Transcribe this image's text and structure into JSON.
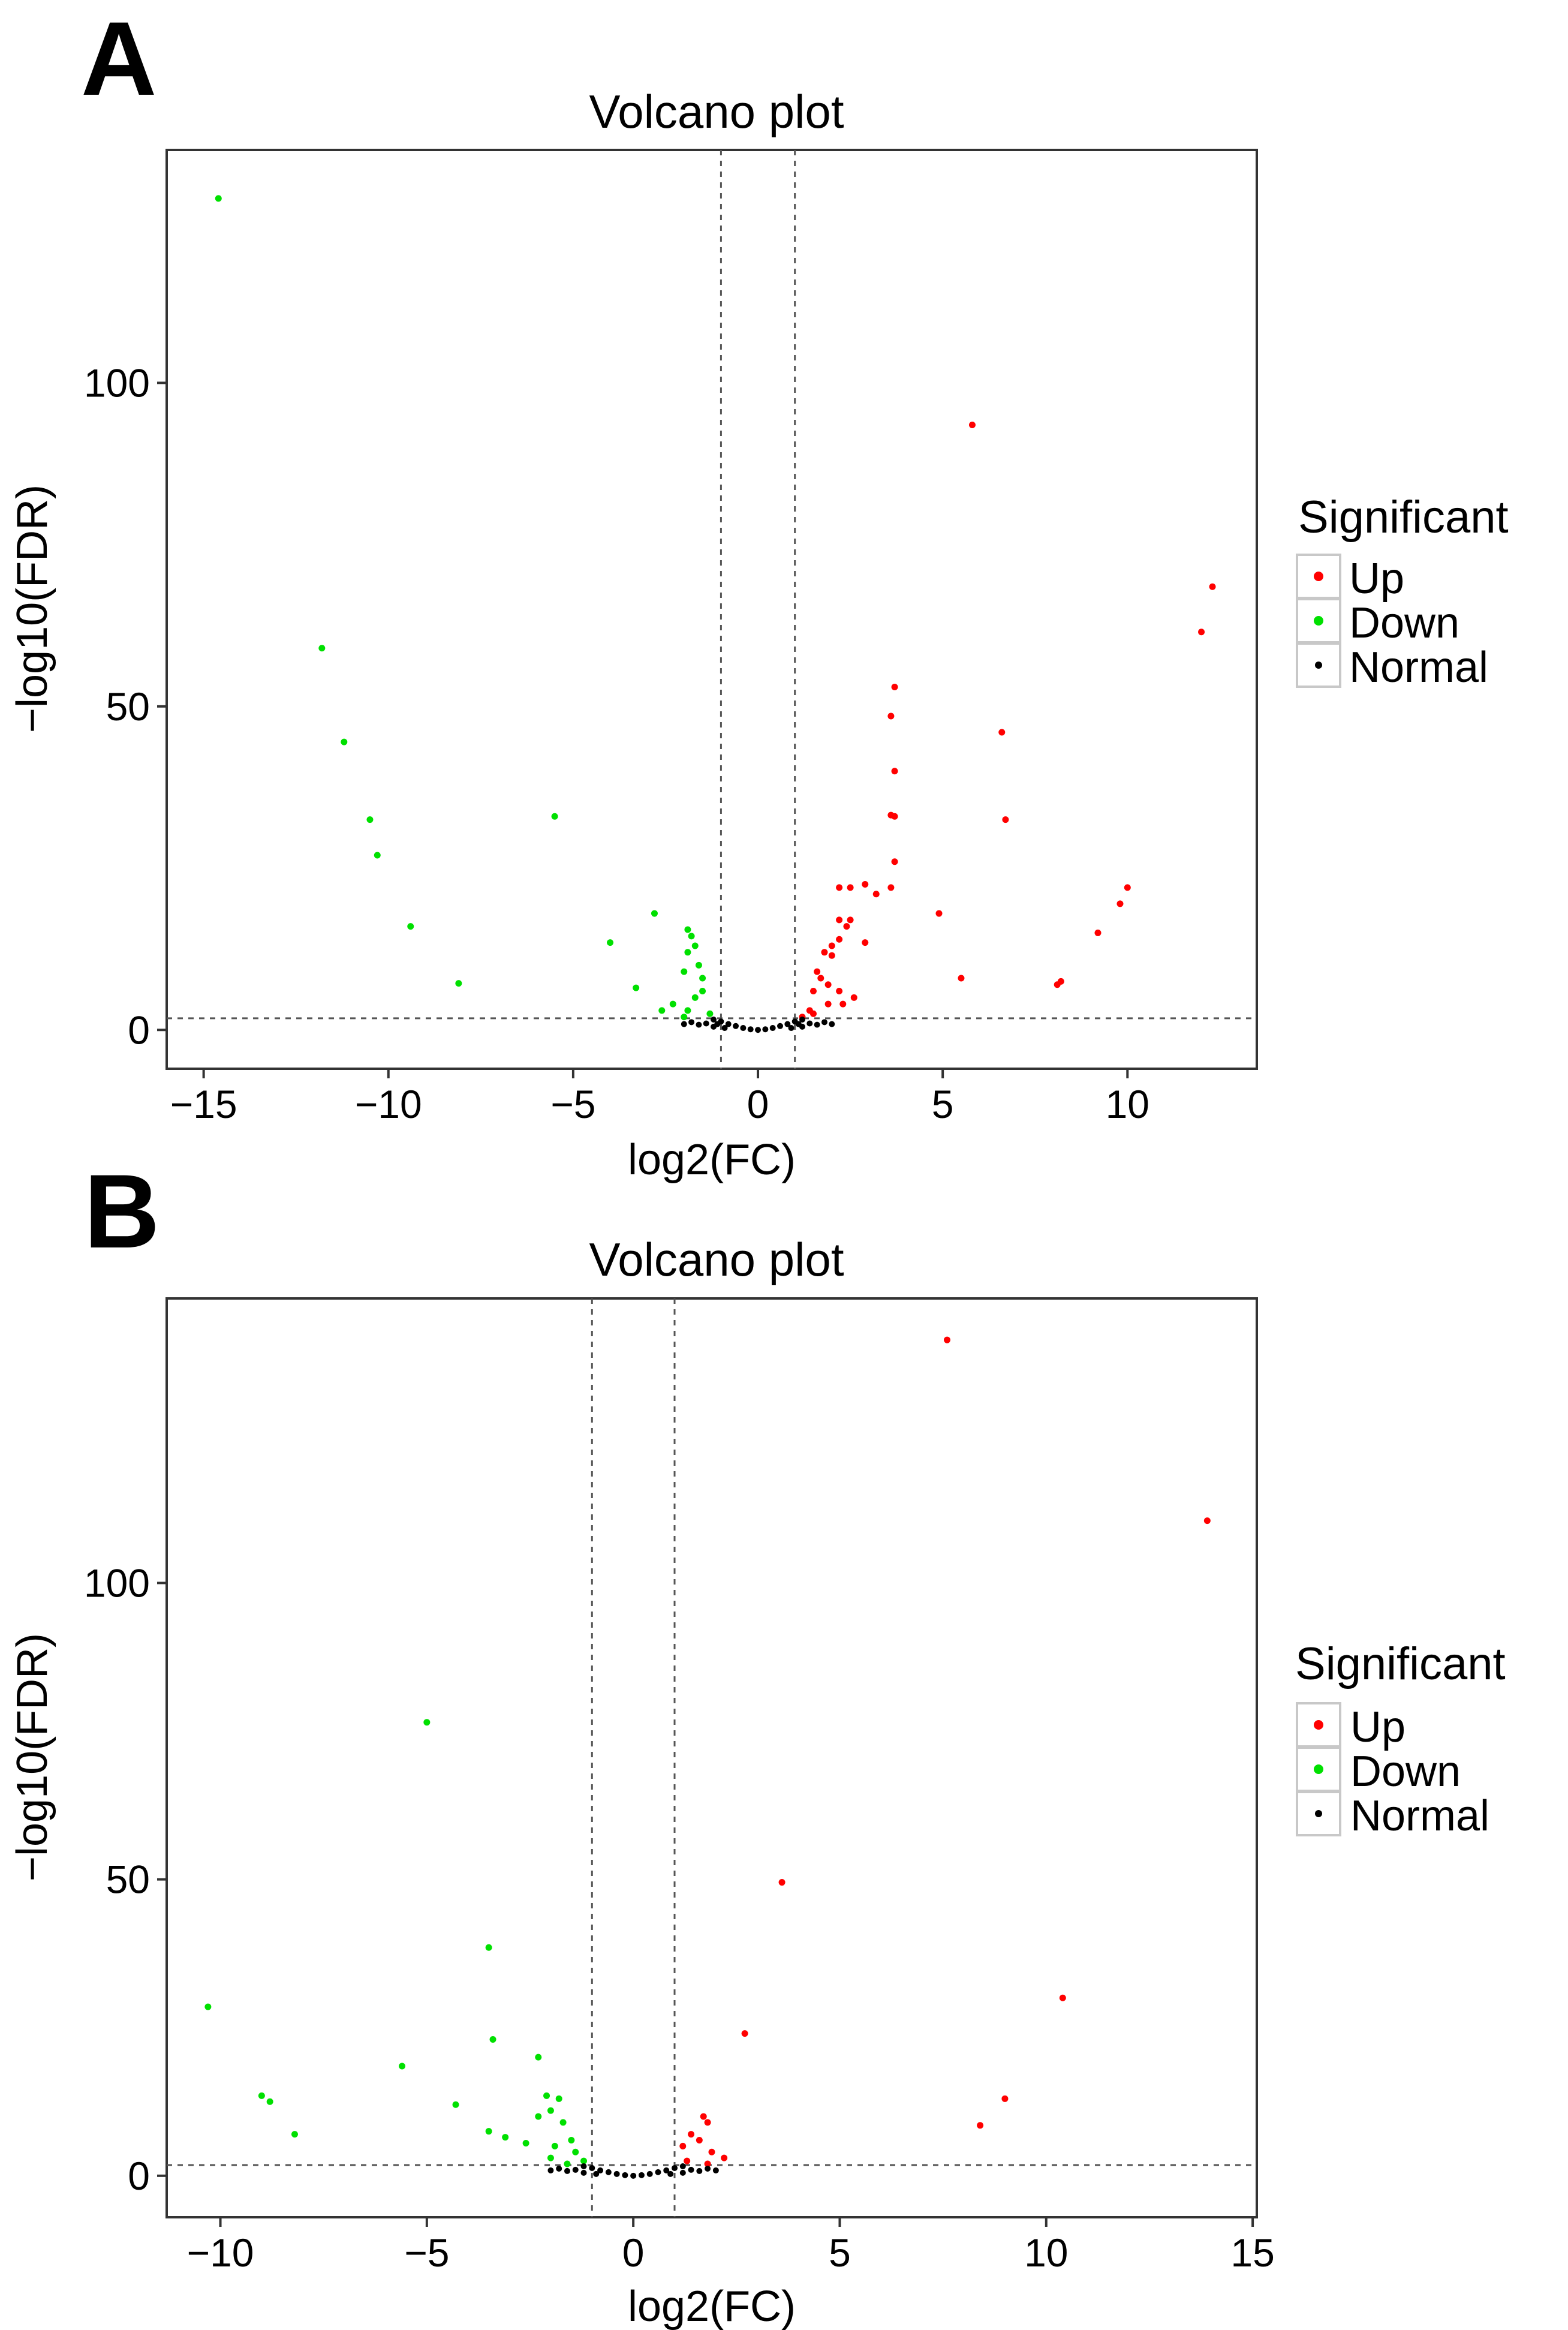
{
  "figure": {
    "panel_labels": [
      "A",
      "B"
    ]
  },
  "colors": {
    "up": "#ff0000",
    "down": "#00e000",
    "normal": "#000000",
    "frame": "#333333",
    "guide": "#555555",
    "legend_border": "#c8c8c8"
  },
  "chart_data": [
    {
      "panel": "A",
      "type": "scatter",
      "title": "Volcano plot",
      "xlabel": "log2(FC)",
      "ylabel": "−log10(FDR)",
      "xlim": [
        -16,
        13.5
      ],
      "ylim": [
        -6,
        136
      ],
      "xticks": [
        -15,
        -10,
        -5,
        0,
        5,
        10
      ],
      "xtick_labels": [
        "−15",
        "−10",
        "−5",
        "0",
        "5",
        "10"
      ],
      "yticks": [
        0,
        50,
        100
      ],
      "ytick_labels": [
        "0",
        "50",
        "100"
      ],
      "thresholds": {
        "x": [
          -1,
          1
        ],
        "y": 1.8
      },
      "legend": {
        "title": "Significant",
        "entries": [
          "Up",
          "Down",
          "Normal"
        ],
        "placement": "right"
      },
      "grid": false,
      "series": [
        {
          "name": "Up",
          "points": [
            [
              5.8,
              93.5
            ],
            [
              12.3,
              68.5
            ],
            [
              12.0,
              61.5
            ],
            [
              3.7,
              53
            ],
            [
              3.6,
              48.5
            ],
            [
              6.6,
              46
            ],
            [
              3.7,
              40
            ],
            [
              3.6,
              33.2
            ],
            [
              3.7,
              33
            ],
            [
              6.7,
              32.5
            ],
            [
              3.7,
              26
            ],
            [
              2.2,
              22
            ],
            [
              2.5,
              22
            ],
            [
              2.9,
              22.5
            ],
            [
              3.2,
              21
            ],
            [
              3.6,
              22
            ],
            [
              10,
              22
            ],
            [
              9.8,
              19.5
            ],
            [
              4.9,
              18
            ],
            [
              2.5,
              17
            ],
            [
              2.2,
              17
            ],
            [
              2.4,
              16
            ],
            [
              9.2,
              15
            ],
            [
              2.2,
              14
            ],
            [
              2.0,
              13
            ],
            [
              2.0,
              11.5
            ],
            [
              2.9,
              13.5
            ],
            [
              1.8,
              12
            ],
            [
              8.2,
              7.5
            ],
            [
              8.1,
              7
            ],
            [
              5.5,
              8
            ],
            [
              1.6,
              9
            ],
            [
              1.7,
              8
            ],
            [
              1.9,
              7
            ],
            [
              2.2,
              6
            ],
            [
              1.5,
              6
            ],
            [
              2.6,
              5
            ],
            [
              1.9,
              4
            ],
            [
              2.3,
              4
            ],
            [
              1.4,
              3
            ],
            [
              1.5,
              2.5
            ],
            [
              1.2,
              2
            ]
          ]
        },
        {
          "name": "Down",
          "points": [
            [
              -14.6,
              128.5
            ],
            [
              -11.8,
              59
            ],
            [
              -11.2,
              44.5
            ],
            [
              -10.5,
              32.5
            ],
            [
              -10.3,
              27
            ],
            [
              -5.5,
              33
            ],
            [
              -9.4,
              16
            ],
            [
              -8.1,
              7.2
            ],
            [
              -4.0,
              13.5
            ],
            [
              -2.8,
              18
            ],
            [
              -1.9,
              15.5
            ],
            [
              -1.8,
              14.5
            ],
            [
              -1.7,
              13
            ],
            [
              -1.9,
              12
            ],
            [
              -2.0,
              9
            ],
            [
              -1.6,
              10
            ],
            [
              -1.5,
              8
            ],
            [
              -3.3,
              6.5
            ],
            [
              -1.5,
              6
            ],
            [
              -1.7,
              5
            ],
            [
              -2.3,
              4
            ],
            [
              -1.9,
              3
            ],
            [
              -2.6,
              3
            ],
            [
              -1.3,
              2.5
            ],
            [
              -2.0,
              2
            ]
          ]
        },
        {
          "name": "Normal",
          "points": [
            [
              0,
              0
            ],
            [
              -0.2,
              0.1
            ],
            [
              0.2,
              0.1
            ],
            [
              -0.4,
              0.3
            ],
            [
              0.4,
              0.3
            ],
            [
              -0.6,
              0.6
            ],
            [
              0.6,
              0.6
            ],
            [
              -0.8,
              0.9
            ],
            [
              0.8,
              0.9
            ],
            [
              -1.0,
              1.3
            ],
            [
              1.0,
              1.3
            ],
            [
              -1.2,
              1.6
            ],
            [
              1.2,
              1.6
            ],
            [
              -1.4,
              1.0
            ],
            [
              1.4,
              1.0
            ],
            [
              -1.8,
              1.2
            ],
            [
              1.8,
              1.2
            ],
            [
              -1.2,
              0.5
            ],
            [
              1.2,
              0.5
            ],
            [
              -0.9,
              0.3
            ],
            [
              0.9,
              0.3
            ],
            [
              -1.6,
              0.8
            ],
            [
              1.6,
              0.8
            ],
            [
              -2.0,
              0.9
            ],
            [
              2.0,
              0.9
            ],
            [
              -1.1,
              0.9
            ],
            [
              1.1,
              0.9
            ]
          ]
        }
      ]
    },
    {
      "panel": "B",
      "type": "scatter",
      "title": "Volcano plot",
      "xlabel": "log2(FC)",
      "ylabel": "−log10(FDR)",
      "xlim": [
        -11.3,
        15.1
      ],
      "ylim": [
        -7,
        148
      ],
      "xticks": [
        -10,
        -5,
        0,
        5,
        10,
        15
      ],
      "xtick_labels": [
        "−10",
        "−5",
        "0",
        "5",
        "10",
        "15"
      ],
      "yticks": [
        0,
        50,
        100
      ],
      "ytick_labels": [
        "0",
        "50",
        "100"
      ],
      "thresholds": {
        "x": [
          -1,
          1
        ],
        "y": 1.8
      },
      "legend": {
        "title": "Significant",
        "entries": [
          "Up",
          "Down",
          "Normal"
        ],
        "placement": "right"
      },
      "grid": false,
      "series": [
        {
          "name": "Up",
          "points": [
            [
              7.6,
              141
            ],
            [
              13.9,
              110.5
            ],
            [
              3.6,
              49.5
            ],
            [
              10.4,
              30
            ],
            [
              2.7,
              24
            ],
            [
              9.0,
              13
            ],
            [
              8.4,
              8.5
            ],
            [
              1.7,
              10
            ],
            [
              1.8,
              9
            ],
            [
              1.4,
              7
            ],
            [
              1.6,
              6
            ],
            [
              1.2,
              5
            ],
            [
              1.9,
              4
            ],
            [
              2.2,
              3
            ],
            [
              1.3,
              2.5
            ],
            [
              1.8,
              2
            ]
          ]
        },
        {
          "name": "Down",
          "points": [
            [
              -5.0,
              76.5
            ],
            [
              -10.3,
              28.5
            ],
            [
              -3.5,
              38.5
            ],
            [
              -3.4,
              23
            ],
            [
              -2.3,
              20
            ],
            [
              -5.6,
              18.5
            ],
            [
              -9.0,
              13.5
            ],
            [
              -8.8,
              12.5
            ],
            [
              -8.2,
              7
            ],
            [
              -4.3,
              12
            ],
            [
              -2.1,
              13.5
            ],
            [
              -1.8,
              13
            ],
            [
              -2.0,
              11
            ],
            [
              -2.3,
              10
            ],
            [
              -1.7,
              9
            ],
            [
              -3.5,
              7.5
            ],
            [
              -3.1,
              6.5
            ],
            [
              -2.6,
              5.5
            ],
            [
              -1.5,
              6
            ],
            [
              -1.9,
              5
            ],
            [
              -1.4,
              4
            ],
            [
              -2.0,
              3
            ],
            [
              -1.2,
              2.5
            ],
            [
              -1.6,
              2
            ]
          ]
        },
        {
          "name": "Normal",
          "points": [
            [
              0,
              0
            ],
            [
              -0.2,
              0.1
            ],
            [
              0.2,
              0.1
            ],
            [
              -0.4,
              0.3
            ],
            [
              0.4,
              0.3
            ],
            [
              -0.6,
              0.6
            ],
            [
              0.6,
              0.6
            ],
            [
              -0.8,
              0.9
            ],
            [
              0.8,
              0.9
            ],
            [
              -1.0,
              1.3
            ],
            [
              1.0,
              1.3
            ],
            [
              -1.2,
              1.6
            ],
            [
              1.2,
              1.6
            ],
            [
              -1.4,
              1.0
            ],
            [
              1.4,
              1.0
            ],
            [
              -1.8,
              1.2
            ],
            [
              1.8,
              1.2
            ],
            [
              -1.2,
              0.5
            ],
            [
              1.2,
              0.5
            ],
            [
              -0.9,
              0.3
            ],
            [
              0.9,
              0.3
            ],
            [
              -1.6,
              0.8
            ],
            [
              1.6,
              0.8
            ],
            [
              -2.0,
              0.9
            ],
            [
              2.0,
              0.9
            ]
          ]
        }
      ]
    }
  ]
}
